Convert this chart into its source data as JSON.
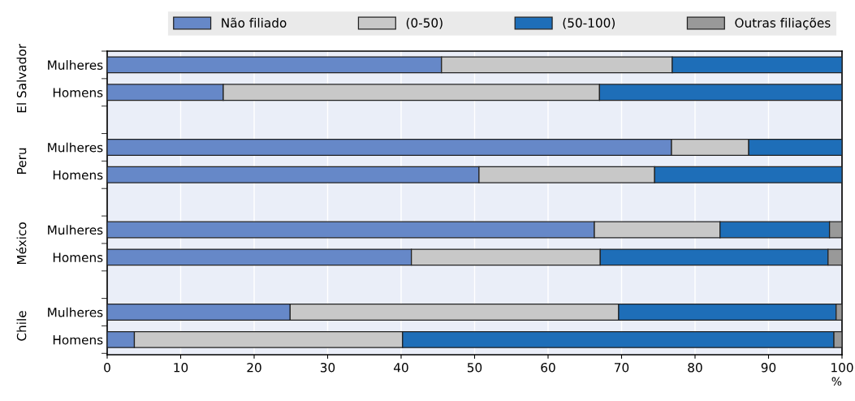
{
  "chart_data": {
    "type": "bar",
    "orientation": "horizontal",
    "stacked": true,
    "categories": [
      "Mulheres",
      "Homens",
      null,
      "Mulheres",
      "Homens",
      null,
      "Mulheres",
      "Homens",
      null,
      "Mulheres",
      "Homens"
    ],
    "series": [
      {
        "name": "Não filiado",
        "color": "#6688c8",
        "values": [
          45.5,
          15.8,
          null,
          76.8,
          50.6,
          null,
          66.3,
          41.4,
          null,
          24.9,
          3.7
        ]
      },
      {
        "name": "(0-50)",
        "color": "#c8c8c8",
        "values": [
          31.4,
          51.2,
          null,
          10.5,
          23.9,
          null,
          17.1,
          25.7,
          null,
          44.7,
          36.5
        ]
      },
      {
        "name": "(50-100)",
        "color": "#1e6eb8",
        "values": [
          23.1,
          33.0,
          null,
          12.7,
          25.5,
          null,
          14.9,
          31.0,
          null,
          29.6,
          58.7
        ]
      },
      {
        "name": "Outras filiações",
        "color": "#999999",
        "values": [
          null,
          null,
          null,
          null,
          null,
          null,
          1.7,
          1.9,
          null,
          0.8,
          1.1
        ]
      }
    ],
    "xlim": [
      0,
      100
    ],
    "xticks": [
      0,
      10,
      20,
      30,
      40,
      50,
      60,
      70,
      80,
      90,
      100
    ],
    "xlabel": "%",
    "annotations": [
      "El Salvador",
      "Peru",
      "México",
      "Chile"
    ],
    "grid": "x",
    "legend": "top"
  }
}
